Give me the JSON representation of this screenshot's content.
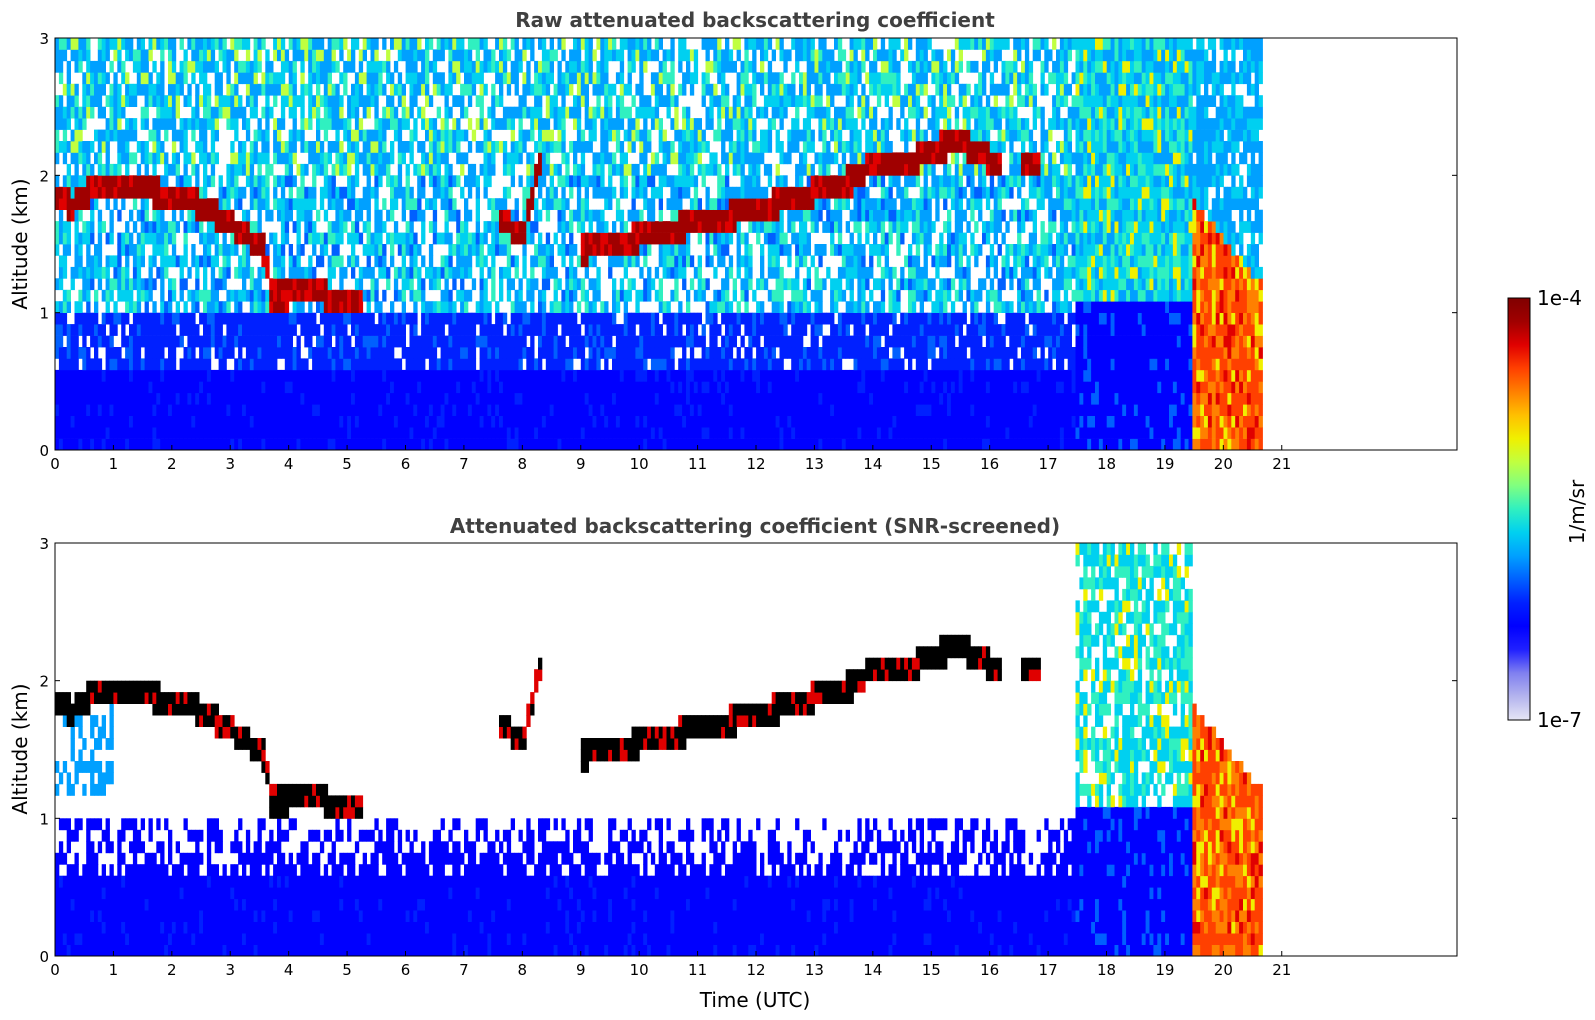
{
  "chart_data": [
    {
      "type": "heatmap",
      "id": "raw",
      "title": "Raw attenuated backscattering coefficient",
      "xlabel": "",
      "ylabel": "Altitude (km)",
      "xlim": [
        0,
        24
      ],
      "ylim": [
        0,
        3
      ],
      "data_xmax": 20.67,
      "xticks": [
        0,
        1,
        2,
        3,
        4,
        5,
        6,
        7,
        8,
        9,
        10,
        11,
        12,
        13,
        14,
        15,
        16,
        17,
        18,
        19,
        20,
        21
      ],
      "xtick_labels": [
        "0",
        "1",
        "2",
        "3",
        "4",
        "5",
        "6",
        "7",
        "8",
        "9",
        "10",
        "11",
        "12",
        "13",
        "14",
        "15",
        "16",
        "17",
        "18",
        "19",
        "20",
        "21"
      ],
      "yticks": [
        0,
        1,
        2,
        3
      ],
      "ytick_labels": [
        "0",
        "1",
        "2",
        "3"
      ],
      "screened": false,
      "cloud_layer": [
        {
          "t": 0.0,
          "alt": 1.85
        },
        {
          "t": 0.3,
          "alt": 1.78
        },
        {
          "t": 0.6,
          "alt": 1.88
        },
        {
          "t": 1.0,
          "alt": 1.94
        },
        {
          "t": 1.5,
          "alt": 1.9
        },
        {
          "t": 2.0,
          "alt": 1.85
        },
        {
          "t": 2.5,
          "alt": 1.78
        },
        {
          "t": 3.0,
          "alt": 1.65
        },
        {
          "t": 3.6,
          "alt": 1.45
        },
        {
          "t": 3.7,
          "alt": 1.12
        },
        {
          "t": 4.5,
          "alt": 1.15
        },
        {
          "t": 5.0,
          "alt": 1.05
        },
        {
          "t": 7.6,
          "alt": 1.7
        },
        {
          "t": 8.0,
          "alt": 1.55
        },
        {
          "t": 8.3,
          "alt": 2.1
        },
        {
          "t": 9.0,
          "alt": 1.45
        },
        {
          "t": 10.0,
          "alt": 1.55
        },
        {
          "t": 11.0,
          "alt": 1.65
        },
        {
          "t": 12.0,
          "alt": 1.75
        },
        {
          "t": 13.0,
          "alt": 1.88
        },
        {
          "t": 13.7,
          "alt": 1.97
        },
        {
          "t": 14.0,
          "alt": 2.1
        },
        {
          "t": 14.5,
          "alt": 2.07
        },
        {
          "t": 15.0,
          "alt": 2.18
        },
        {
          "t": 15.5,
          "alt": 2.25
        },
        {
          "t": 16.0,
          "alt": 2.12
        },
        {
          "t": 16.7,
          "alt": 2.05
        },
        {
          "t": 17.4,
          "alt": 2.2
        }
      ],
      "high_signal_region": {
        "t_start": 19.5,
        "t_end": 20.67,
        "top_alt_start": 1.8,
        "top_alt_end": 1.2
      }
    },
    {
      "type": "heatmap",
      "id": "snr",
      "title": "Attenuated backscattering coefficient (SNR-screened)",
      "xlabel": "Time (UTC)",
      "ylabel": "Altitude (km)",
      "xlim": [
        0,
        24
      ],
      "ylim": [
        0,
        3
      ],
      "data_xmax": 20.67,
      "xticks": [
        0,
        1,
        2,
        3,
        4,
        5,
        6,
        7,
        8,
        9,
        10,
        11,
        12,
        13,
        14,
        15,
        16,
        17,
        18,
        19,
        20,
        21
      ],
      "xtick_labels": [
        "0",
        "1",
        "2",
        "3",
        "4",
        "5",
        "6",
        "7",
        "8",
        "9",
        "10",
        "11",
        "12",
        "13",
        "14",
        "15",
        "16",
        "17",
        "18",
        "19",
        "20",
        "21"
      ],
      "yticks": [
        0,
        1,
        2,
        3
      ],
      "ytick_labels": [
        "0",
        "1",
        "2",
        "3"
      ],
      "screened": true
    }
  ],
  "colorbar": {
    "label": "1/m/sr",
    "min_label": "1e-7",
    "max_label": "1e-4",
    "scale": "log",
    "colors": [
      "#e6e6f5",
      "#b4b4ee",
      "#8080f0",
      "#2020ff",
      "#0000ff",
      "#0020ff",
      "#0060ff",
      "#00a0ff",
      "#00d0f0",
      "#30f0c0",
      "#80ff80",
      "#c0ff40",
      "#f0f000",
      "#ffc000",
      "#ff8000",
      "#ff4000",
      "#e00000",
      "#a00000",
      "#800000"
    ]
  }
}
